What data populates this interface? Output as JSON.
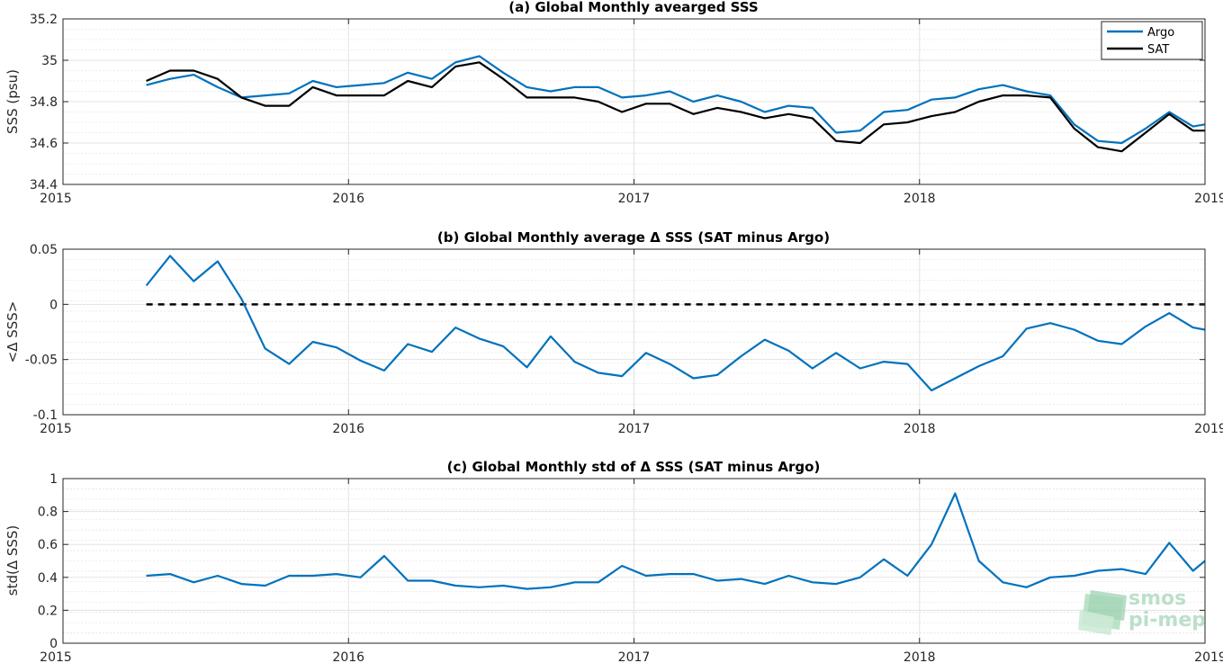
{
  "chart_data": [
    {
      "type": "line",
      "title": "(a) Global Monthly avearged SSS",
      "xlabel": "",
      "ylabel": "SSS (psu)",
      "xlim": [
        2015,
        2019
      ],
      "ylim": [
        34.4,
        35.2
      ],
      "xticks": [
        "2015",
        "2016",
        "2017",
        "2018",
        "2019"
      ],
      "yticks": [
        "34.4",
        "34.6",
        "34.8",
        "35",
        "35.2"
      ],
      "grid": true,
      "legend": "top-right",
      "x": [
        2015.292,
        2015.375,
        2015.458,
        2015.542,
        2015.625,
        2015.708,
        2015.792,
        2015.875,
        2015.958,
        2016.042,
        2016.125,
        2016.208,
        2016.292,
        2016.375,
        2016.458,
        2016.542,
        2016.625,
        2016.708,
        2016.792,
        2016.875,
        2016.958,
        2017.042,
        2017.125,
        2017.208,
        2017.292,
        2017.375,
        2017.458,
        2017.542,
        2017.625,
        2017.708,
        2017.792,
        2017.875,
        2017.958,
        2018.042,
        2018.125,
        2018.208,
        2018.292,
        2018.375,
        2018.458,
        2018.542,
        2018.625,
        2018.708,
        2018.792,
        2018.875,
        2018.958,
        2019.0
      ],
      "series": [
        {
          "name": "Argo",
          "color": "#0072bd",
          "values": [
            34.88,
            34.91,
            34.93,
            34.87,
            34.82,
            34.83,
            34.84,
            34.9,
            34.87,
            34.88,
            34.89,
            34.94,
            34.91,
            34.99,
            35.02,
            34.94,
            34.87,
            34.85,
            34.87,
            34.87,
            34.82,
            34.83,
            34.85,
            34.8,
            34.83,
            34.8,
            34.75,
            34.78,
            34.77,
            34.65,
            34.66,
            34.75,
            34.76,
            34.81,
            34.82,
            34.86,
            34.88,
            34.85,
            34.83,
            34.69,
            34.61,
            34.6,
            34.67,
            34.75,
            34.68,
            34.69
          ]
        },
        {
          "name": "SAT",
          "color": "#000000",
          "values": [
            34.9,
            34.95,
            34.95,
            34.91,
            34.82,
            34.78,
            34.78,
            34.87,
            34.83,
            34.83,
            34.83,
            34.9,
            34.87,
            34.97,
            34.99,
            34.91,
            34.82,
            34.82,
            34.82,
            34.8,
            34.75,
            34.79,
            34.79,
            34.74,
            34.77,
            34.75,
            34.72,
            34.74,
            34.72,
            34.61,
            34.6,
            34.69,
            34.7,
            34.73,
            34.75,
            34.8,
            34.83,
            34.83,
            34.82,
            34.67,
            34.58,
            34.56,
            34.65,
            34.74,
            34.66,
            34.66
          ]
        }
      ]
    },
    {
      "type": "line",
      "title": "(b) Global Monthly average Δ SSS (SAT minus Argo)",
      "xlabel": "",
      "ylabel": "<Δ SSS>",
      "xlim": [
        2015,
        2019
      ],
      "ylim": [
        -0.1,
        0.05
      ],
      "xticks": [
        "2015",
        "2016",
        "2017",
        "2018",
        "2019"
      ],
      "yticks": [
        "-0.1",
        "-0.05",
        "0",
        "0.05"
      ],
      "grid": true,
      "reference_line": {
        "y": 0,
        "style": "dashed",
        "color": "#000000"
      },
      "x": [
        2015.292,
        2015.375,
        2015.458,
        2015.542,
        2015.625,
        2015.708,
        2015.792,
        2015.875,
        2015.958,
        2016.042,
        2016.125,
        2016.208,
        2016.292,
        2016.375,
        2016.458,
        2016.542,
        2016.625,
        2016.708,
        2016.792,
        2016.875,
        2016.958,
        2017.042,
        2017.125,
        2017.208,
        2017.292,
        2017.375,
        2017.458,
        2017.542,
        2017.625,
        2017.708,
        2017.792,
        2017.875,
        2017.958,
        2018.042,
        2018.125,
        2018.208,
        2018.292,
        2018.375,
        2018.458,
        2018.542,
        2018.625,
        2018.708,
        2018.792,
        2018.875,
        2018.958,
        2019.0
      ],
      "series": [
        {
          "color": "#0072bd",
          "values": [
            0.017,
            0.044,
            0.021,
            0.039,
            0.005,
            -0.04,
            -0.054,
            -0.034,
            -0.039,
            -0.051,
            -0.06,
            -0.036,
            -0.043,
            -0.021,
            -0.031,
            -0.038,
            -0.057,
            -0.029,
            -0.052,
            -0.062,
            -0.065,
            -0.044,
            -0.054,
            -0.067,
            -0.064,
            -0.047,
            -0.032,
            -0.042,
            -0.058,
            -0.044,
            -0.058,
            -0.052,
            -0.054,
            -0.078,
            -0.067,
            -0.056,
            -0.047,
            -0.022,
            -0.017,
            -0.023,
            -0.033,
            -0.036,
            -0.02,
            -0.008,
            -0.021,
            -0.023
          ]
        }
      ]
    },
    {
      "type": "line",
      "title": "(c) Global Monthly std of Δ SSS (SAT minus Argo)",
      "xlabel": "",
      "ylabel": "std(Δ SSS)",
      "xlim": [
        2015,
        2019
      ],
      "ylim": [
        0,
        1
      ],
      "xticks": [
        "2015",
        "2016",
        "2017",
        "2018",
        "2019"
      ],
      "yticks": [
        "0",
        "0.2",
        "0.4",
        "0.6",
        "0.8",
        "1"
      ],
      "grid": true,
      "x": [
        2015.292,
        2015.375,
        2015.458,
        2015.542,
        2015.625,
        2015.708,
        2015.792,
        2015.875,
        2015.958,
        2016.042,
        2016.125,
        2016.208,
        2016.292,
        2016.375,
        2016.458,
        2016.542,
        2016.625,
        2016.708,
        2016.792,
        2016.875,
        2016.958,
        2017.042,
        2017.125,
        2017.208,
        2017.292,
        2017.375,
        2017.458,
        2017.542,
        2017.625,
        2017.708,
        2017.792,
        2017.875,
        2017.958,
        2018.042,
        2018.125,
        2018.208,
        2018.292,
        2018.375,
        2018.458,
        2018.542,
        2018.625,
        2018.708,
        2018.792,
        2018.875,
        2018.958,
        2019.0
      ],
      "series": [
        {
          "color": "#0072bd",
          "values": [
            0.41,
            0.42,
            0.37,
            0.41,
            0.36,
            0.35,
            0.41,
            0.41,
            0.42,
            0.4,
            0.53,
            0.38,
            0.38,
            0.35,
            0.34,
            0.35,
            0.33,
            0.34,
            0.37,
            0.37,
            0.47,
            0.41,
            0.42,
            0.42,
            0.38,
            0.39,
            0.36,
            0.41,
            0.37,
            0.36,
            0.4,
            0.51,
            0.41,
            0.6,
            0.91,
            0.5,
            0.37,
            0.34,
            0.4,
            0.41,
            0.44,
            0.45,
            0.42,
            0.61,
            0.44,
            0.5
          ]
        }
      ]
    }
  ],
  "watermark": {
    "line1": "smos",
    "line2": "pi-mep",
    "color": "#7fc49a"
  }
}
